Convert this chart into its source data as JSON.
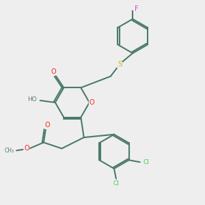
{
  "background_color": "#eeeeee",
  "bond_color": "#4a7a6a",
  "bond_width": 1.5,
  "atom_colors": {
    "O": "#ff2020",
    "S": "#c8b800",
    "F": "#cc44cc",
    "Cl": "#44cc44",
    "C": "#4a7a6a",
    "H": "#607878"
  },
  "figsize": [
    3.0,
    3.0
  ],
  "dpi": 100
}
